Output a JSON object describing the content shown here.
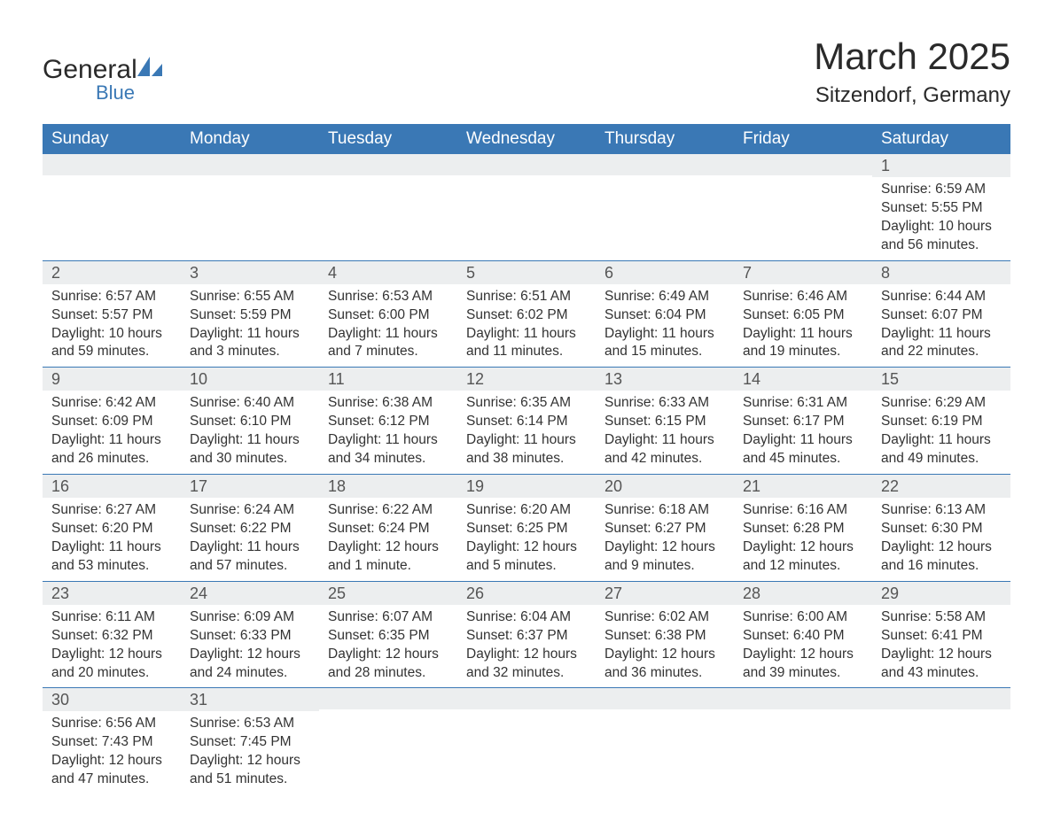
{
  "brand": {
    "main": "General",
    "sub": "Blue",
    "main_color": "#2a2a2a",
    "sub_color": "#3a78b5"
  },
  "title": "March 2025",
  "location": "Sitzendorf, Germany",
  "colors": {
    "header_bg": "#3a78b5",
    "header_text": "#ffffff",
    "daynum_bg": "#eceeef",
    "row_border": "#3a78b5",
    "body_text": "#333333",
    "page_bg": "#ffffff"
  },
  "fonts": {
    "title_pt": 42,
    "location_pt": 24,
    "dayhead_pt": 19,
    "daynum_pt": 18,
    "body_pt": 15.5
  },
  "days_of_week": [
    "Sunday",
    "Monday",
    "Tuesday",
    "Wednesday",
    "Thursday",
    "Friday",
    "Saturday"
  ],
  "weeks": [
    [
      {
        "n": "",
        "lines": []
      },
      {
        "n": "",
        "lines": []
      },
      {
        "n": "",
        "lines": []
      },
      {
        "n": "",
        "lines": []
      },
      {
        "n": "",
        "lines": []
      },
      {
        "n": "",
        "lines": []
      },
      {
        "n": "1",
        "lines": [
          "Sunrise: 6:59 AM",
          "Sunset: 5:55 PM",
          "Daylight: 10 hours and 56 minutes."
        ]
      }
    ],
    [
      {
        "n": "2",
        "lines": [
          "Sunrise: 6:57 AM",
          "Sunset: 5:57 PM",
          "Daylight: 10 hours and 59 minutes."
        ]
      },
      {
        "n": "3",
        "lines": [
          "Sunrise: 6:55 AM",
          "Sunset: 5:59 PM",
          "Daylight: 11 hours and 3 minutes."
        ]
      },
      {
        "n": "4",
        "lines": [
          "Sunrise: 6:53 AM",
          "Sunset: 6:00 PM",
          "Daylight: 11 hours and 7 minutes."
        ]
      },
      {
        "n": "5",
        "lines": [
          "Sunrise: 6:51 AM",
          "Sunset: 6:02 PM",
          "Daylight: 11 hours and 11 minutes."
        ]
      },
      {
        "n": "6",
        "lines": [
          "Sunrise: 6:49 AM",
          "Sunset: 6:04 PM",
          "Daylight: 11 hours and 15 minutes."
        ]
      },
      {
        "n": "7",
        "lines": [
          "Sunrise: 6:46 AM",
          "Sunset: 6:05 PM",
          "Daylight: 11 hours and 19 minutes."
        ]
      },
      {
        "n": "8",
        "lines": [
          "Sunrise: 6:44 AM",
          "Sunset: 6:07 PM",
          "Daylight: 11 hours and 22 minutes."
        ]
      }
    ],
    [
      {
        "n": "9",
        "lines": [
          "Sunrise: 6:42 AM",
          "Sunset: 6:09 PM",
          "Daylight: 11 hours and 26 minutes."
        ]
      },
      {
        "n": "10",
        "lines": [
          "Sunrise: 6:40 AM",
          "Sunset: 6:10 PM",
          "Daylight: 11 hours and 30 minutes."
        ]
      },
      {
        "n": "11",
        "lines": [
          "Sunrise: 6:38 AM",
          "Sunset: 6:12 PM",
          "Daylight: 11 hours and 34 minutes."
        ]
      },
      {
        "n": "12",
        "lines": [
          "Sunrise: 6:35 AM",
          "Sunset: 6:14 PM",
          "Daylight: 11 hours and 38 minutes."
        ]
      },
      {
        "n": "13",
        "lines": [
          "Sunrise: 6:33 AM",
          "Sunset: 6:15 PM",
          "Daylight: 11 hours and 42 minutes."
        ]
      },
      {
        "n": "14",
        "lines": [
          "Sunrise: 6:31 AM",
          "Sunset: 6:17 PM",
          "Daylight: 11 hours and 45 minutes."
        ]
      },
      {
        "n": "15",
        "lines": [
          "Sunrise: 6:29 AM",
          "Sunset: 6:19 PM",
          "Daylight: 11 hours and 49 minutes."
        ]
      }
    ],
    [
      {
        "n": "16",
        "lines": [
          "Sunrise: 6:27 AM",
          "Sunset: 6:20 PM",
          "Daylight: 11 hours and 53 minutes."
        ]
      },
      {
        "n": "17",
        "lines": [
          "Sunrise: 6:24 AM",
          "Sunset: 6:22 PM",
          "Daylight: 11 hours and 57 minutes."
        ]
      },
      {
        "n": "18",
        "lines": [
          "Sunrise: 6:22 AM",
          "Sunset: 6:24 PM",
          "Daylight: 12 hours and 1 minute."
        ]
      },
      {
        "n": "19",
        "lines": [
          "Sunrise: 6:20 AM",
          "Sunset: 6:25 PM",
          "Daylight: 12 hours and 5 minutes."
        ]
      },
      {
        "n": "20",
        "lines": [
          "Sunrise: 6:18 AM",
          "Sunset: 6:27 PM",
          "Daylight: 12 hours and 9 minutes."
        ]
      },
      {
        "n": "21",
        "lines": [
          "Sunrise: 6:16 AM",
          "Sunset: 6:28 PM",
          "Daylight: 12 hours and 12 minutes."
        ]
      },
      {
        "n": "22",
        "lines": [
          "Sunrise: 6:13 AM",
          "Sunset: 6:30 PM",
          "Daylight: 12 hours and 16 minutes."
        ]
      }
    ],
    [
      {
        "n": "23",
        "lines": [
          "Sunrise: 6:11 AM",
          "Sunset: 6:32 PM",
          "Daylight: 12 hours and 20 minutes."
        ]
      },
      {
        "n": "24",
        "lines": [
          "Sunrise: 6:09 AM",
          "Sunset: 6:33 PM",
          "Daylight: 12 hours and 24 minutes."
        ]
      },
      {
        "n": "25",
        "lines": [
          "Sunrise: 6:07 AM",
          "Sunset: 6:35 PM",
          "Daylight: 12 hours and 28 minutes."
        ]
      },
      {
        "n": "26",
        "lines": [
          "Sunrise: 6:04 AM",
          "Sunset: 6:37 PM",
          "Daylight: 12 hours and 32 minutes."
        ]
      },
      {
        "n": "27",
        "lines": [
          "Sunrise: 6:02 AM",
          "Sunset: 6:38 PM",
          "Daylight: 12 hours and 36 minutes."
        ]
      },
      {
        "n": "28",
        "lines": [
          "Sunrise: 6:00 AM",
          "Sunset: 6:40 PM",
          "Daylight: 12 hours and 39 minutes."
        ]
      },
      {
        "n": "29",
        "lines": [
          "Sunrise: 5:58 AM",
          "Sunset: 6:41 PM",
          "Daylight: 12 hours and 43 minutes."
        ]
      }
    ],
    [
      {
        "n": "30",
        "lines": [
          "Sunrise: 6:56 AM",
          "Sunset: 7:43 PM",
          "Daylight: 12 hours and 47 minutes."
        ]
      },
      {
        "n": "31",
        "lines": [
          "Sunrise: 6:53 AM",
          "Sunset: 7:45 PM",
          "Daylight: 12 hours and 51 minutes."
        ]
      },
      {
        "n": "",
        "lines": []
      },
      {
        "n": "",
        "lines": []
      },
      {
        "n": "",
        "lines": []
      },
      {
        "n": "",
        "lines": []
      },
      {
        "n": "",
        "lines": []
      }
    ]
  ]
}
